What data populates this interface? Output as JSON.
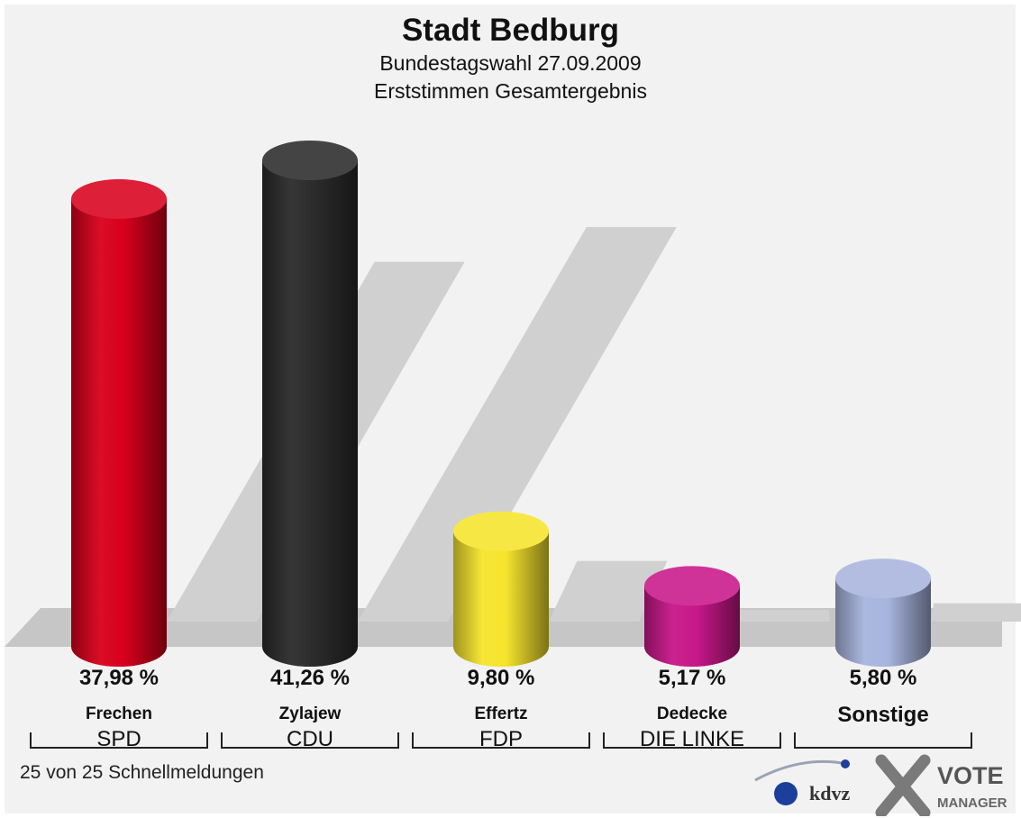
{
  "title": "Stadt Bedburg",
  "subtitle": "Bundestagswahl 27.09.2009",
  "subtitle2": "Erststimmen Gesamtergebnis",
  "footer": "25 von 25 Schnellmeldungen",
  "logo": {
    "kdvz": "kdvz",
    "vote": "VOTE",
    "manager": "MANAGER"
  },
  "chart_data": {
    "type": "bar",
    "title": "Stadt Bedburg",
    "categories": [
      "SPD",
      "CDU",
      "FDP",
      "DIE LINKE",
      ""
    ],
    "candidates": [
      "Frechen",
      "Zylajew",
      "Effertz",
      "Dedecke",
      "Sonstige"
    ],
    "values": [
      37.98,
      41.26,
      9.8,
      5.17,
      5.8
    ],
    "value_labels": [
      "37,98 %",
      "41,26 %",
      "9,80 %",
      "5,17 %",
      "5,80 %"
    ],
    "colors": [
      "#d8001c",
      "#2b2b2b",
      "#f6e42c",
      "#c8178a",
      "#a7b4dd"
    ],
    "unit": "%"
  }
}
